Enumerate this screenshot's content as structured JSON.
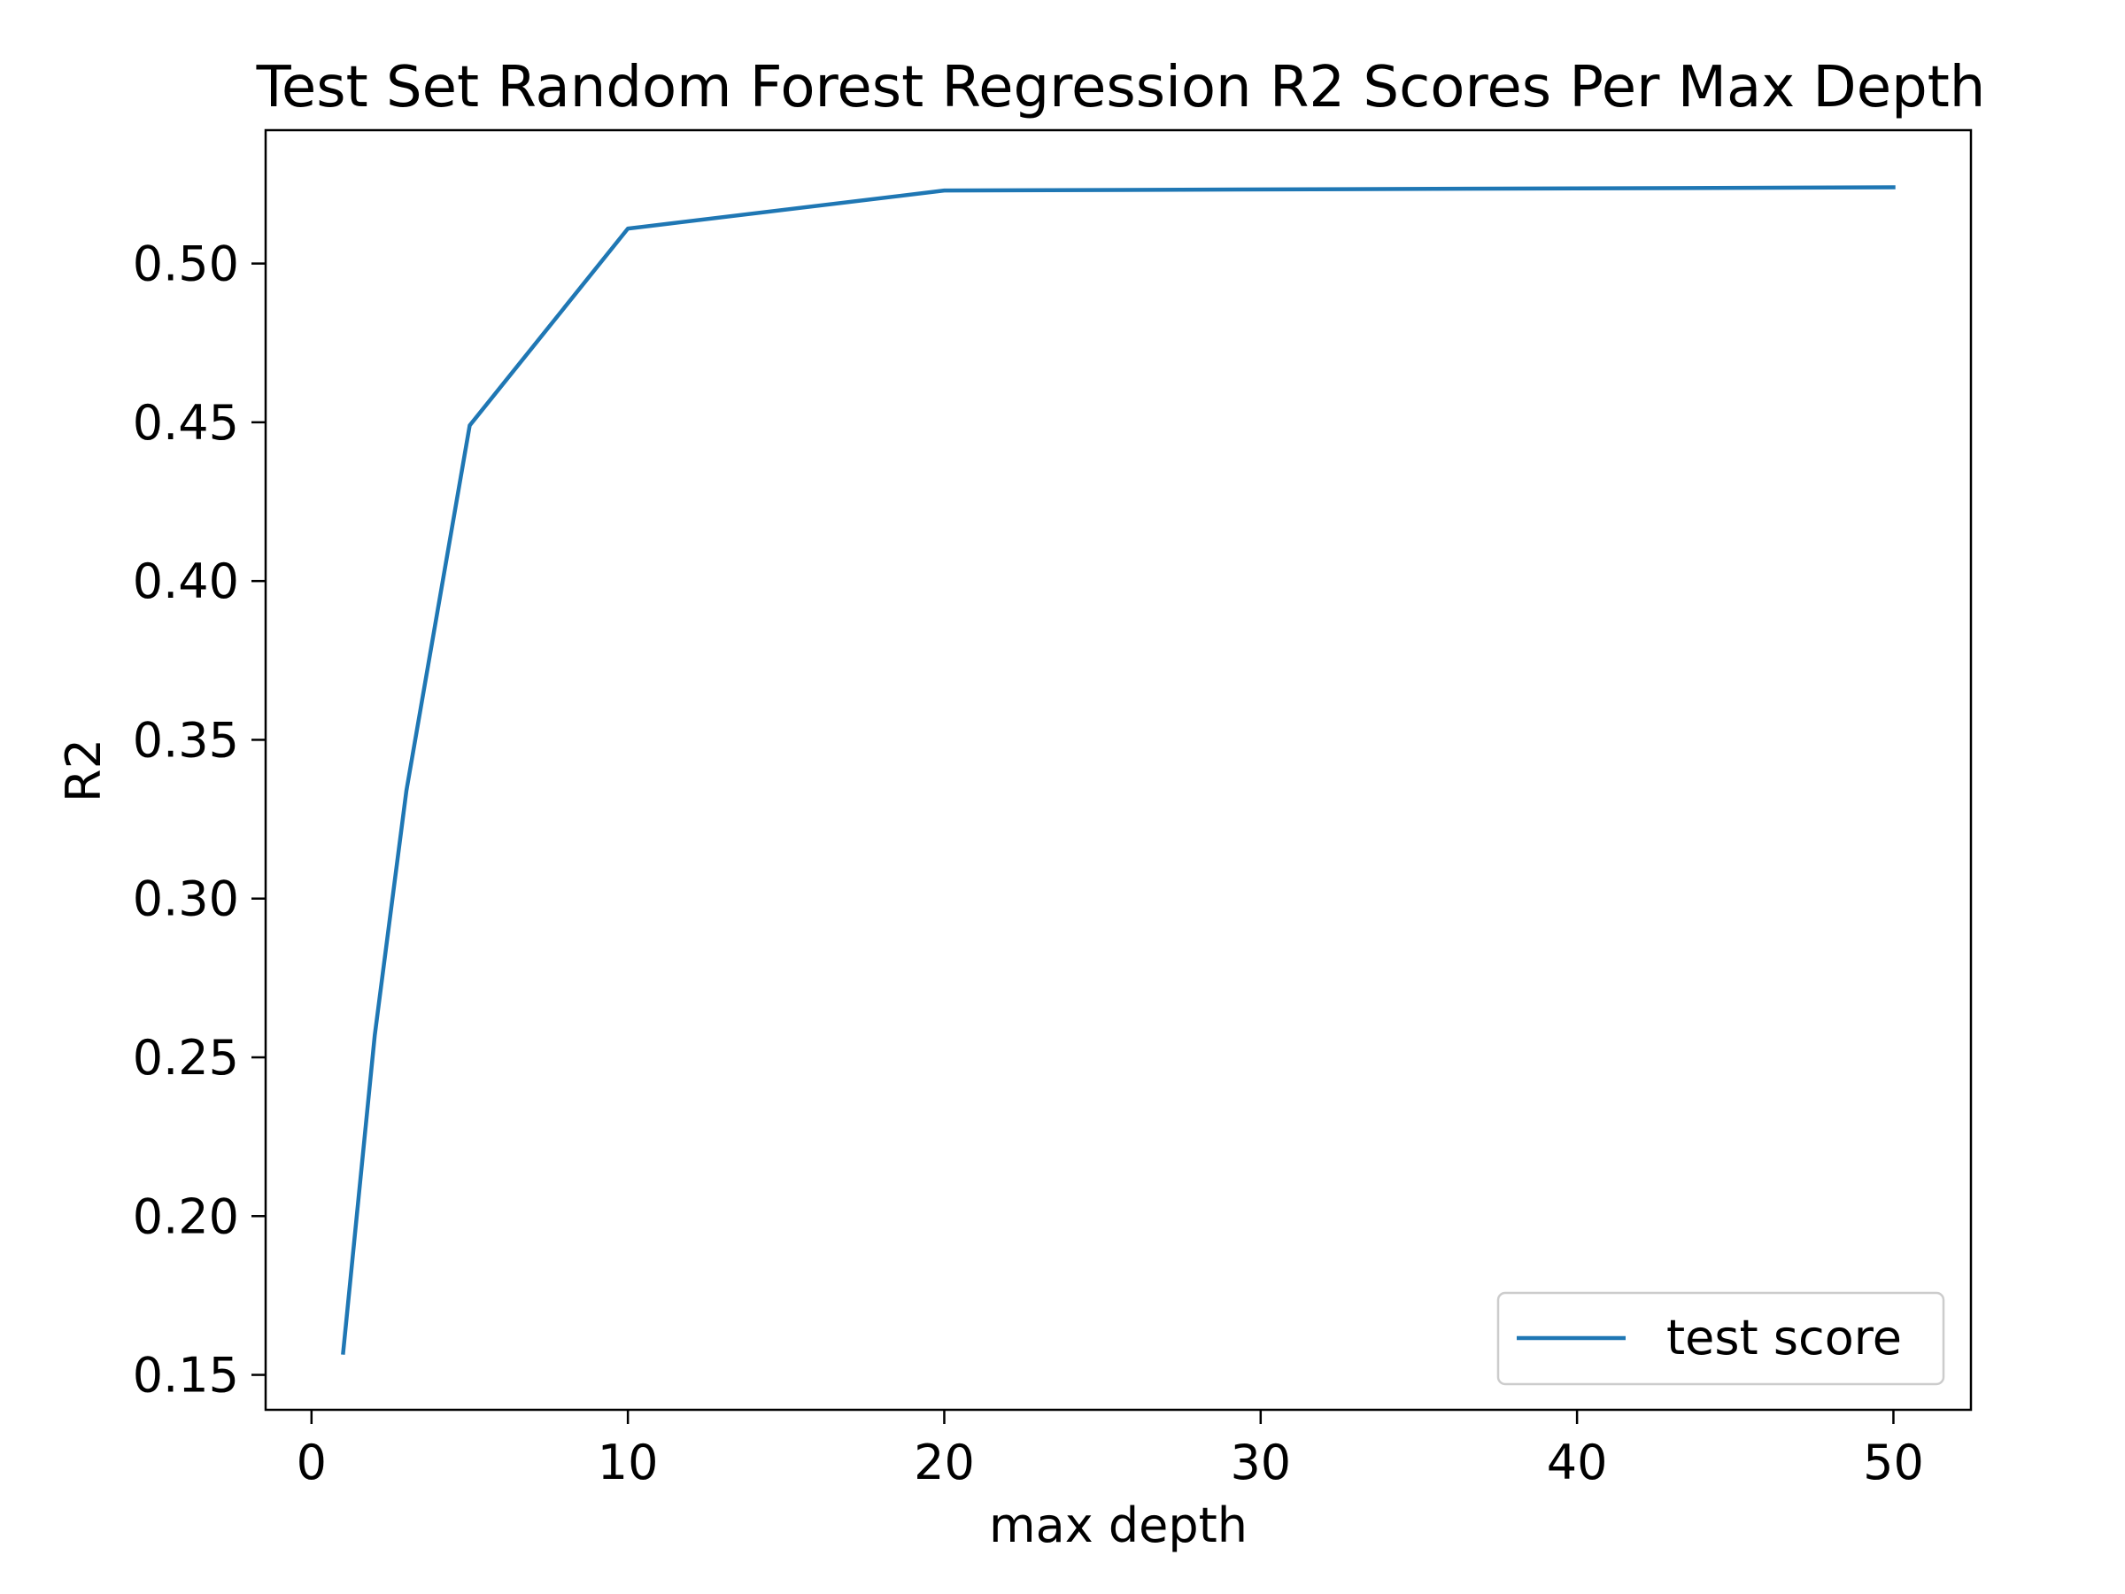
{
  "chart_data": {
    "type": "line",
    "title": "Test Set Random Forest Regression R2 Scores Per Max Depth",
    "xlabel": "max depth",
    "ylabel": "R2",
    "x": [
      1,
      2,
      3,
      5,
      10,
      20,
      50
    ],
    "series": [
      {
        "name": "test score",
        "color": "#1f77b4",
        "values": [
          0.157,
          0.257,
          0.334,
          0.449,
          0.511,
          0.523,
          0.524
        ]
      }
    ],
    "xlim": [
      -1.45,
      52.45
    ],
    "ylim": [
      0.139,
      0.542
    ],
    "xticks": [
      0,
      10,
      20,
      30,
      40,
      50
    ],
    "xtick_labels": [
      "0",
      "10",
      "20",
      "30",
      "40",
      "50"
    ],
    "yticks": [
      0.15,
      0.2,
      0.25,
      0.3,
      0.35,
      0.4,
      0.45,
      0.5
    ],
    "ytick_labels": [
      "0.15",
      "0.20",
      "0.25",
      "0.30",
      "0.35",
      "0.40",
      "0.45",
      "0.50"
    ],
    "grid": false,
    "legend_position": "lower-right"
  }
}
